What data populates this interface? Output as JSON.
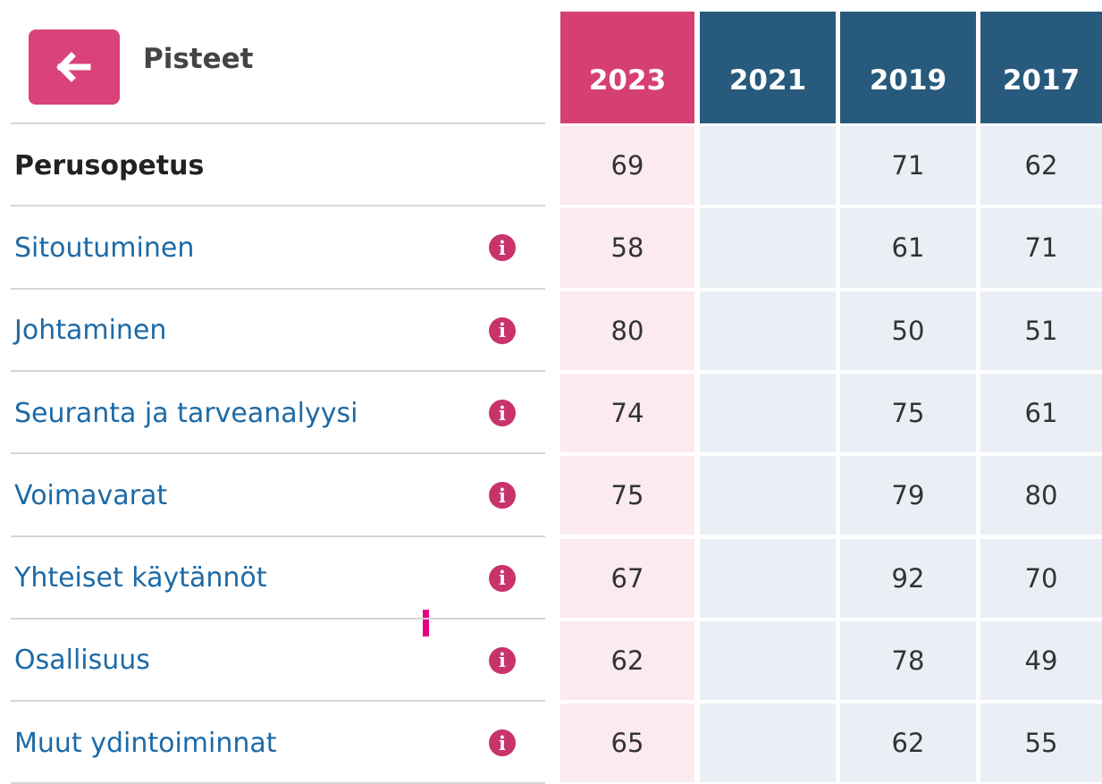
{
  "header": {
    "title": "Pisteet"
  },
  "table": {
    "columns": [
      "2023",
      "2021",
      "2019",
      "2017"
    ],
    "rows": [
      {
        "label": "Perusopetus",
        "values": [
          69,
          null,
          71,
          62
        ]
      },
      {
        "label": "Sitoutuminen",
        "values": [
          58,
          null,
          61,
          71
        ]
      },
      {
        "label": "Johtaminen",
        "values": [
          80,
          null,
          50,
          51
        ]
      },
      {
        "label": "Seuranta ja tarveanalyysi",
        "values": [
          74,
          null,
          75,
          61
        ]
      },
      {
        "label": "Voimavarat",
        "values": [
          75,
          null,
          79,
          80
        ]
      },
      {
        "label": "Yhteiset käytännöt",
        "values": [
          67,
          null,
          92,
          70
        ]
      },
      {
        "label": "Osallisuus",
        "values": [
          62,
          null,
          78,
          49
        ]
      },
      {
        "label": "Muut ydintoiminnat",
        "values": [
          65,
          null,
          62,
          55
        ]
      }
    ]
  }
}
